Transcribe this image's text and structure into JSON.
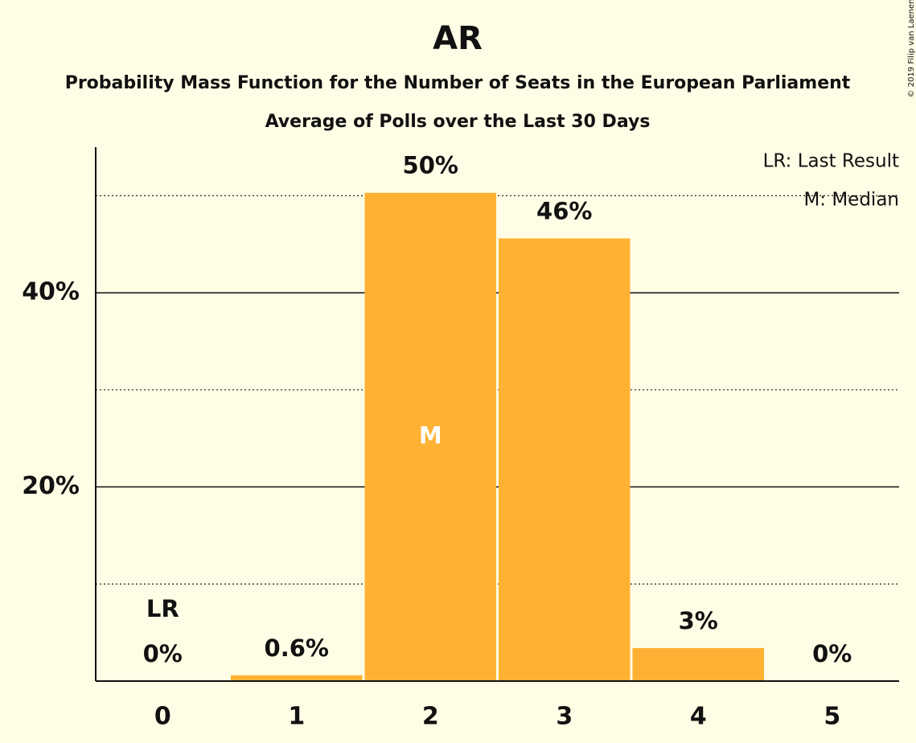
{
  "chart_data": {
    "type": "bar",
    "title": "AR",
    "subtitles": [
      "Probability Mass Function for the Number of Seats in the European Parliament",
      "Average of Polls over the Last 30 Days"
    ],
    "categories": [
      "0",
      "1",
      "2",
      "3",
      "4",
      "5"
    ],
    "values": [
      0,
      0.6,
      50.3,
      45.6,
      3.4,
      0
    ],
    "value_labels": [
      "0%",
      "0.6%",
      "50%",
      "46%",
      "3%",
      "0%"
    ],
    "color": "#ffb133",
    "ylim": [
      0,
      55
    ],
    "yticks": [
      {
        "value": 20,
        "label": "20%"
      },
      {
        "value": 40,
        "label": "40%"
      }
    ],
    "minor_yticks": [
      10,
      30,
      50
    ],
    "grid": true,
    "annotations": [
      {
        "text": "LR",
        "category": 0,
        "position": "above"
      },
      {
        "text": "M",
        "category": 2,
        "position": "inside"
      }
    ],
    "legend": [
      "LR: Last Result",
      "M: Median"
    ],
    "legend_position": "upper right",
    "copyright": "© 2019 Filip van Laenen"
  }
}
